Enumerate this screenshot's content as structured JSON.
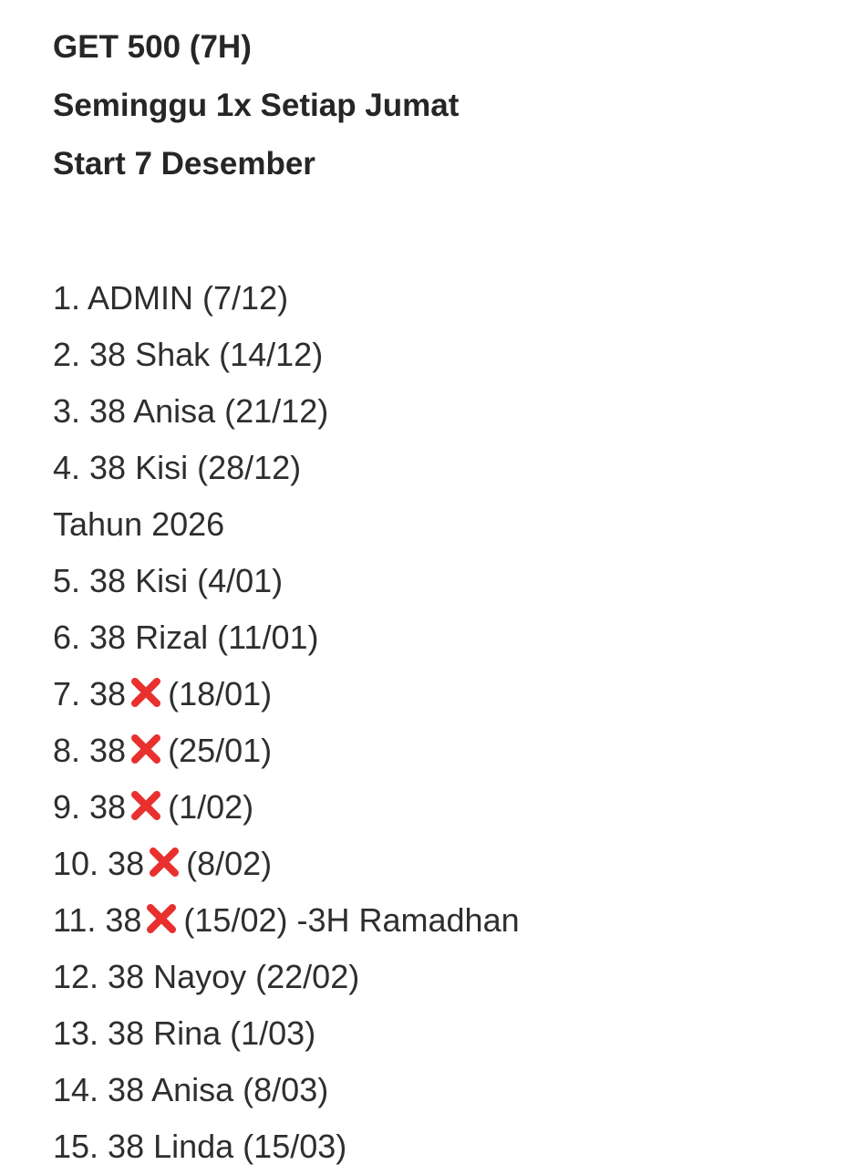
{
  "header": {
    "line1": "GET 500 (7H)",
    "line2": "Seminggu 1x Setiap Jumat",
    "line3": "Start 7 Desember"
  },
  "list": [
    {
      "prefix": "1. ADMIN (7/12)"
    },
    {
      "prefix": "2. 38 Shak (14/12)"
    },
    {
      "prefix": "3. 38 Anisa (21/12)"
    },
    {
      "prefix": "4. 38 Kisi (28/12)"
    },
    {
      "prefix": "Tahun 2026"
    },
    {
      "prefix": "5. 38 Kisi (4/01)"
    },
    {
      "prefix": "6. 38 Rizal (11/01)"
    },
    {
      "prefix": "7. 38",
      "suffix": "(18/01)"
    },
    {
      "prefix": "8. 38",
      "suffix": "(25/01)"
    },
    {
      "prefix": "9. 38",
      "suffix": "(1/02)"
    },
    {
      "prefix": "10. 38",
      "suffix": "(8/02)"
    },
    {
      "prefix": "11. 38",
      "suffix": "(15/02) -3H Ramadhan"
    },
    {
      "prefix": "12. 38 Nayoy (22/02)"
    },
    {
      "prefix": "13. 38 Rina (1/03)"
    },
    {
      "prefix": "14. 38 Anisa (8/03)"
    },
    {
      "prefix": "15. 38 Linda (15/03)"
    }
  ],
  "icons": {
    "cross": "cross-mark-icon",
    "cross_color": "#e8312f"
  }
}
